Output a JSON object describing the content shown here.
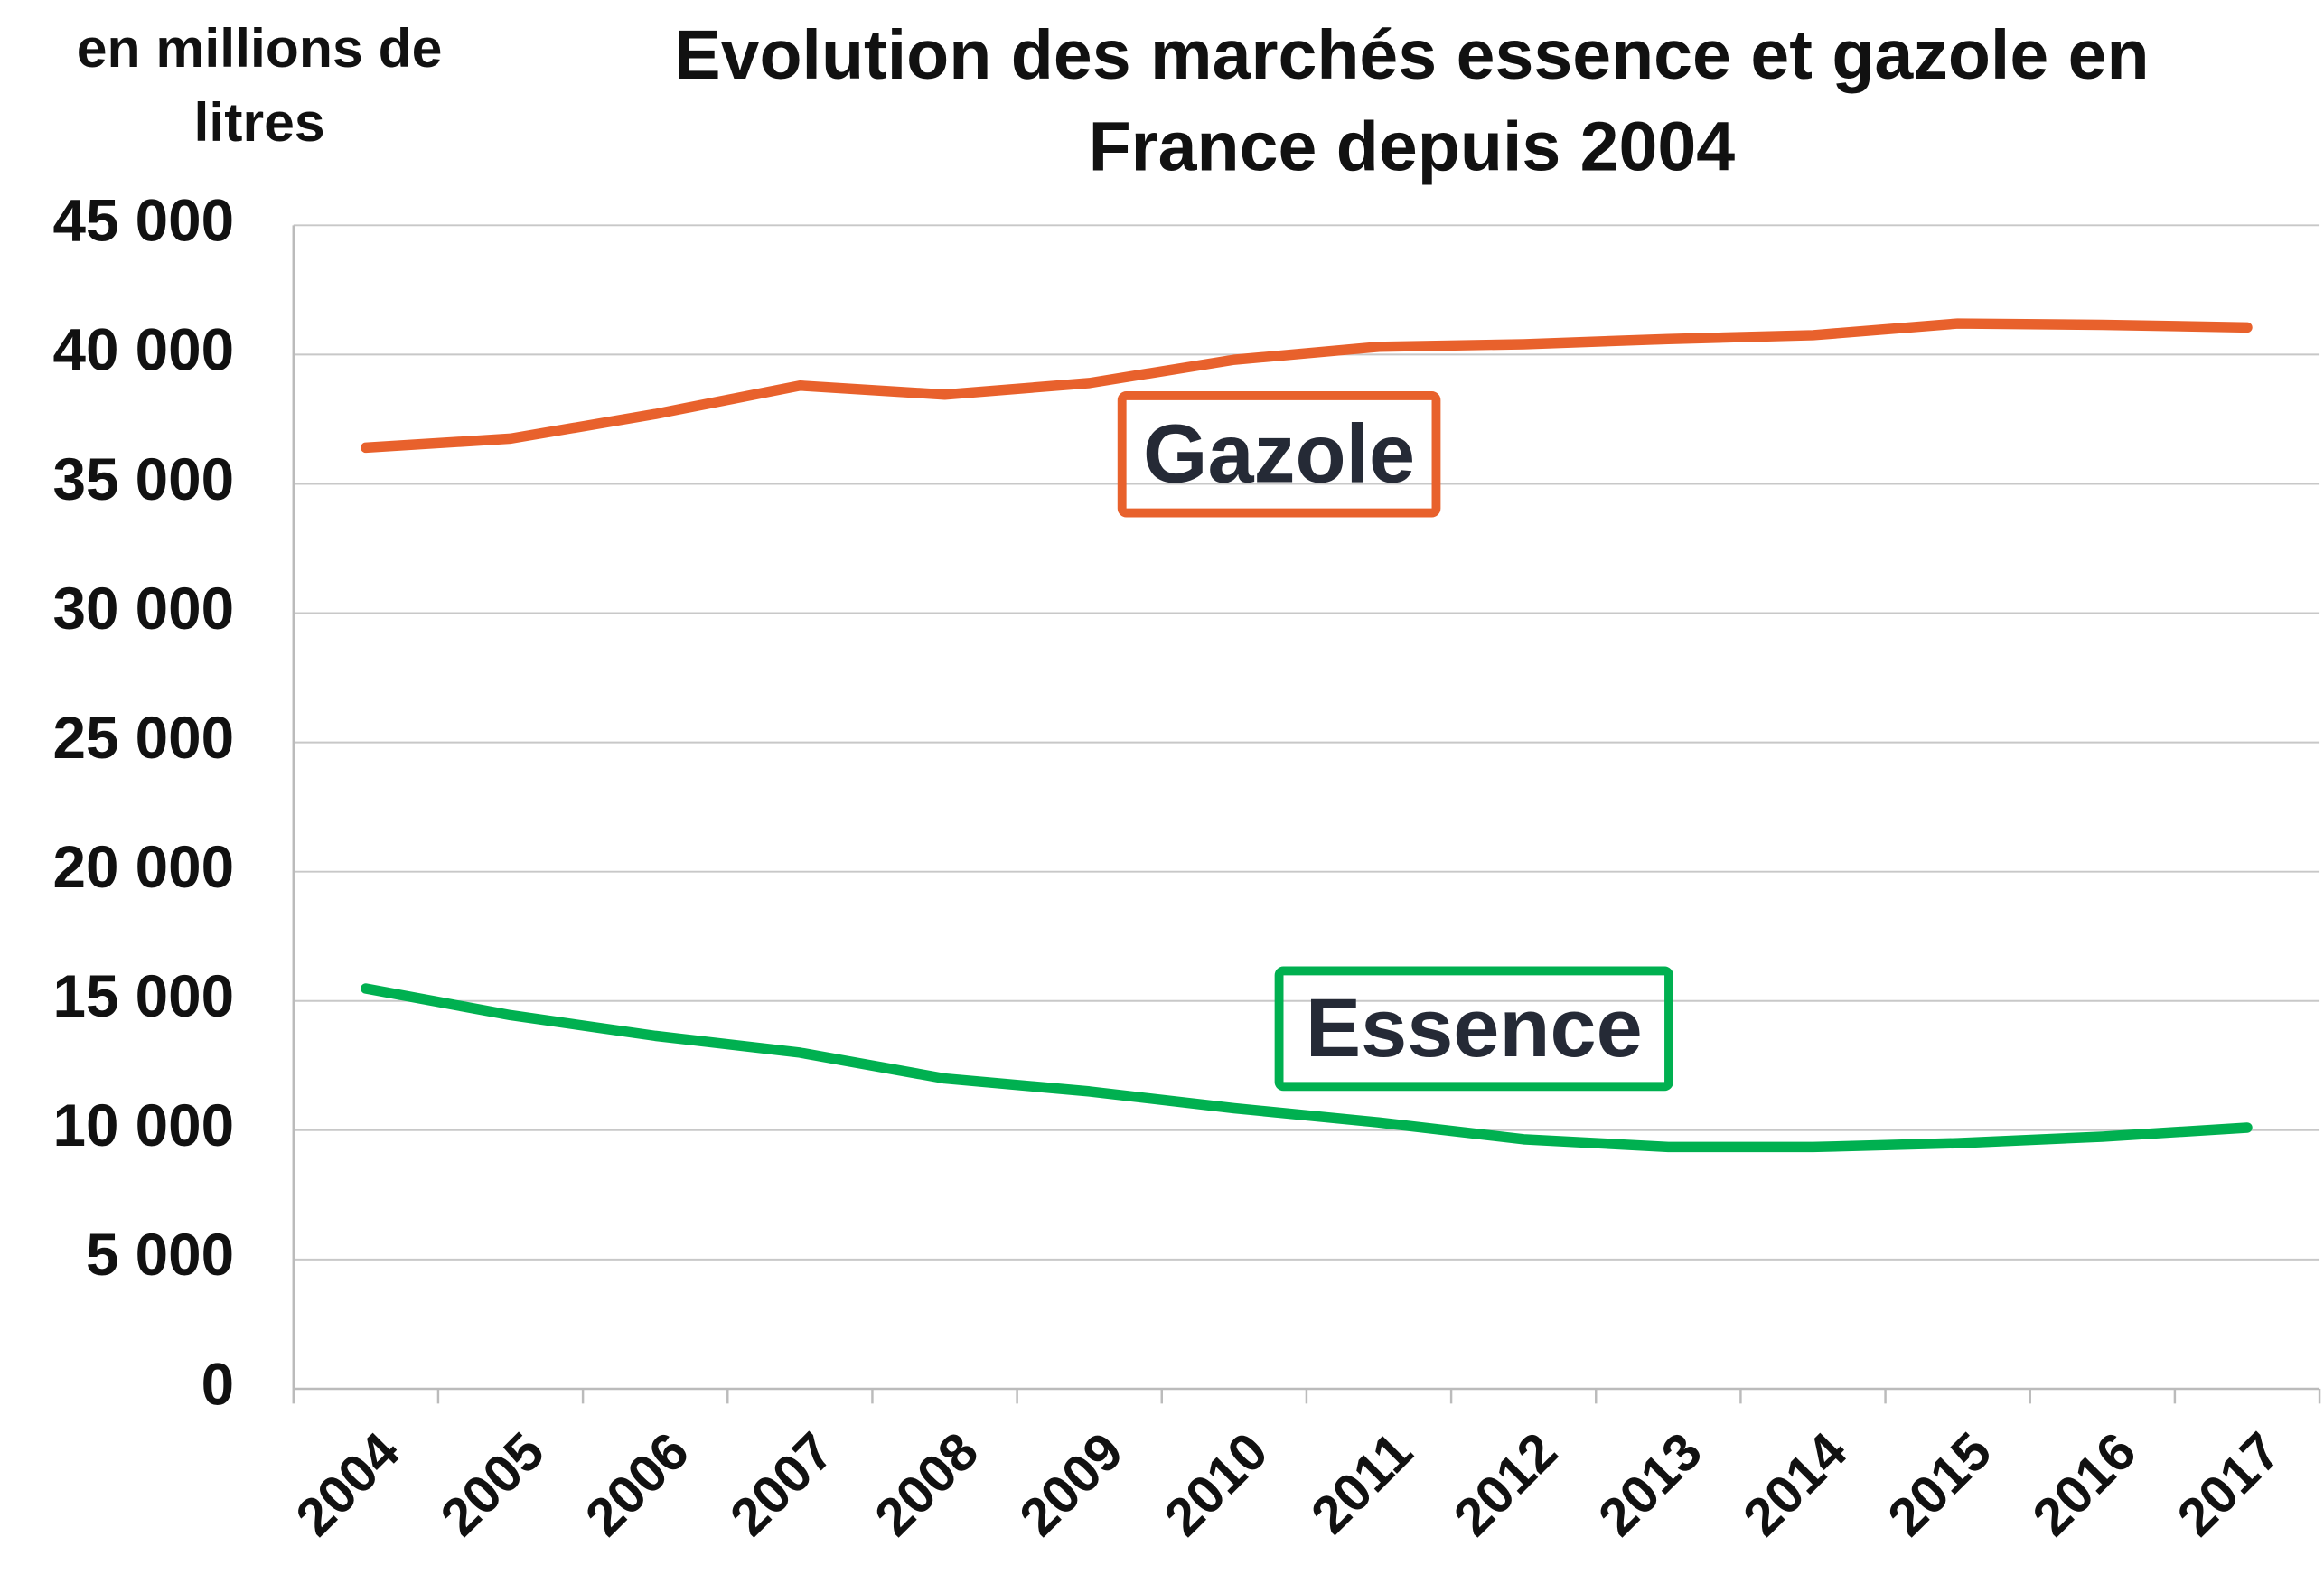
{
  "chart_data": {
    "type": "line",
    "title": "Evolution des marchés essence et gazole en France depuis 2004",
    "y_label": "en millions de litres",
    "categories": [
      "2004",
      "2005",
      "2006",
      "2007",
      "2008",
      "2009",
      "2010",
      "2011",
      "2012",
      "2013",
      "2014",
      "2015",
      "2016",
      "2017"
    ],
    "series": [
      {
        "name": "Gazole",
        "color": "#e8612c",
        "values": [
          36400,
          36750,
          37700,
          38800,
          38450,
          38900,
          39800,
          40300,
          40400,
          40600,
          40750,
          41200,
          41150,
          41050
        ]
      },
      {
        "name": "Essence",
        "color": "#00b050",
        "values": [
          15480,
          14450,
          13650,
          13000,
          12000,
          11500,
          10850,
          10300,
          9650,
          9350,
          9350,
          9500,
          9750,
          10100
        ]
      }
    ],
    "ylim": [
      0,
      45000
    ],
    "yticks": [
      0,
      {
        "value": 5000,
        "label": "5 000"
      },
      {
        "value": 10000,
        "label": "10 000"
      },
      {
        "value": 15000,
        "label": "15 000"
      },
      {
        "value": 20000,
        "label": "20 000"
      },
      {
        "value": 25000,
        "label": "25 000"
      },
      {
        "value": 30000,
        "label": "30 000"
      },
      {
        "value": 35000,
        "label": "35 000"
      },
      {
        "value": 40000,
        "label": "40 000"
      },
      {
        "value": 45000,
        "label": "45 000"
      }
    ],
    "grid": true
  }
}
